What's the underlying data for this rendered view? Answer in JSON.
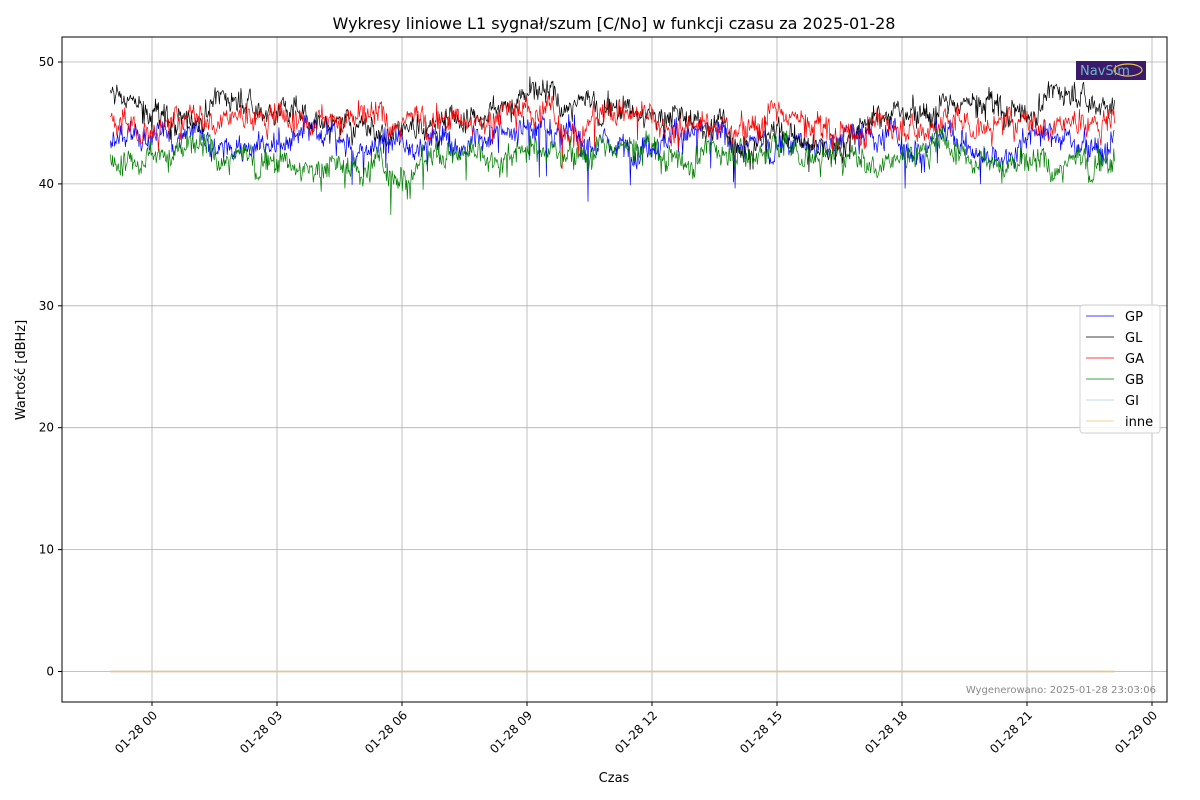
{
  "chart_data": {
    "type": "line",
    "title": "Wykresy liniowe L1 sygnał/szum [C/No] w funkcji czasu za 2025-01-28",
    "xlabel": "Czas",
    "ylabel": "Wartość [dBHz]",
    "x_unit": "hours relative to 2025-01-28 00:00",
    "xlim": [
      -2.16,
      24.36
    ],
    "ylim": [
      -2.5,
      52.05
    ],
    "grid": true,
    "legend_position": "right",
    "x_ticks": [
      {
        "value": 0,
        "label": "01-28 00"
      },
      {
        "value": 3,
        "label": "01-28 03"
      },
      {
        "value": 6,
        "label": "01-28 06"
      },
      {
        "value": 9,
        "label": "01-28 09"
      },
      {
        "value": 12,
        "label": "01-28 12"
      },
      {
        "value": 15,
        "label": "01-28 15"
      },
      {
        "value": 18,
        "label": "01-28 18"
      },
      {
        "value": 21,
        "label": "01-28 21"
      },
      {
        "value": 24,
        "label": "01-29 00"
      }
    ],
    "y_ticks": [
      0,
      10,
      20,
      30,
      40,
      50
    ],
    "x": [
      -1,
      0,
      1,
      2,
      3,
      4,
      5,
      6,
      7,
      8,
      9,
      10,
      11,
      12,
      13,
      14,
      15,
      16,
      17,
      18,
      19,
      20,
      21,
      22,
      23.1
    ],
    "series": [
      {
        "name": "GP",
        "color": "#0000ff",
        "values": [
          43,
          44,
          44.5,
          43,
          44,
          43.5,
          43,
          43,
          44,
          43.5,
          44.5,
          44.5,
          43,
          44,
          44,
          43.5,
          43.5,
          43.5,
          44,
          43.5,
          44,
          42,
          44.5,
          44,
          43
        ]
      },
      {
        "name": "GL",
        "color": "#000000",
        "values": [
          47.5,
          45.5,
          46,
          47,
          46,
          45.5,
          44.5,
          45,
          45,
          46.5,
          47.5,
          47,
          46.5,
          46,
          45,
          44,
          44,
          43,
          45,
          46.5,
          46,
          46.5,
          46.5,
          47.5,
          46.5
        ]
      },
      {
        "name": "GA",
        "color": "#ff0000",
        "values": [
          45,
          44.5,
          45.5,
          46,
          45.5,
          46,
          45.5,
          45.5,
          45.5,
          45.5,
          46,
          45,
          45.5,
          46,
          45,
          45,
          45.5,
          44.5,
          45,
          44.5,
          45,
          45,
          45,
          45.5,
          45
        ]
      },
      {
        "name": "GB",
        "color": "#008000",
        "values": [
          42,
          43,
          43,
          42.5,
          42,
          41.5,
          41,
          41.5,
          42,
          43,
          43,
          43,
          42.5,
          43,
          42.5,
          42.5,
          43,
          42.5,
          42,
          42.5,
          43.5,
          42.5,
          41.5,
          42,
          42
        ]
      },
      {
        "name": "GI",
        "color": "#a6cee3",
        "values": [
          0,
          0,
          0,
          0,
          0,
          0,
          0,
          0,
          0,
          0,
          0,
          0,
          0,
          0,
          0,
          0,
          0,
          0,
          0,
          0,
          0,
          0,
          0,
          0,
          0
        ]
      },
      {
        "name": "inne",
        "color": "#fdbf6f",
        "values": [
          0,
          0,
          0,
          0,
          0,
          0,
          0,
          0,
          0,
          0,
          0,
          0,
          0,
          0,
          0,
          0,
          0,
          0,
          0,
          0,
          0,
          0,
          0,
          0,
          0
        ]
      }
    ],
    "annotation": "Wygenerowano: 2025-01-28 23:03:06",
    "logo_text": "NavSim"
  }
}
